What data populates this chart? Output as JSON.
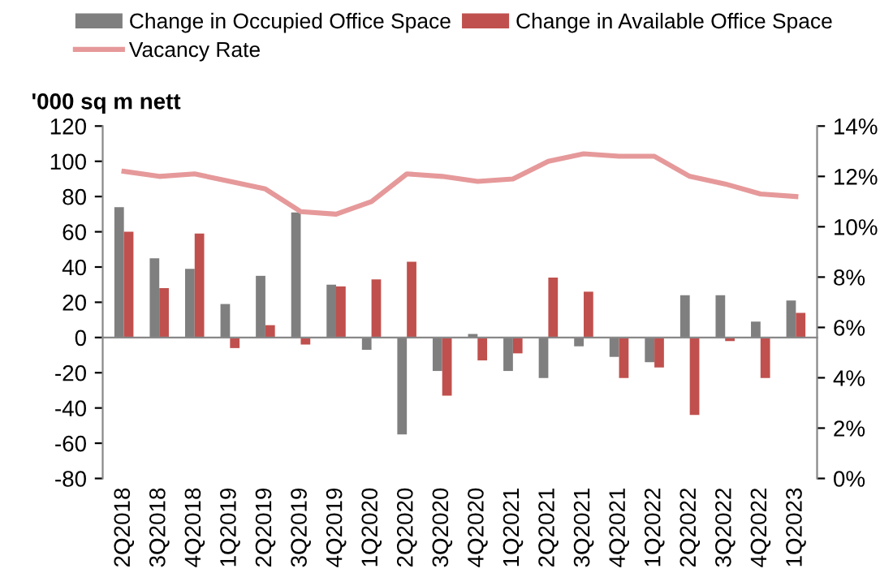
{
  "chart_data": {
    "type": "bar",
    "ylabel": "'000 sq m nett",
    "categories": [
      "2Q2018",
      "3Q2018",
      "4Q2018",
      "1Q2019",
      "2Q2019",
      "3Q2019",
      "4Q2019",
      "1Q2020",
      "2Q2020",
      "3Q2020",
      "4Q2020",
      "1Q2021",
      "2Q2021",
      "3Q2021",
      "4Q2021",
      "1Q2022",
      "2Q2022",
      "3Q2022",
      "4Q2022",
      "1Q2023"
    ],
    "series": [
      {
        "name": "Change in Occupied Office Space",
        "color": "#7f7f7f",
        "values": [
          74,
          45,
          39,
          19,
          35,
          71,
          30,
          -7,
          -55,
          -19,
          2,
          -19,
          -23,
          -5,
          -11,
          -14,
          24,
          24,
          9,
          21
        ]
      },
      {
        "name": "Change in Available Office Space",
        "color": "#c0504d",
        "values": [
          60,
          28,
          59,
          -6,
          7,
          -4,
          29,
          33,
          43,
          -33,
          -13,
          -9,
          34,
          26,
          -23,
          -17,
          -44,
          -2,
          -23,
          14
        ]
      },
      {
        "name": "Vacancy Rate",
        "type": "line",
        "axis": "y2",
        "color": "#e6999a",
        "values": [
          12.2,
          12.0,
          12.1,
          11.8,
          11.5,
          10.6,
          10.5,
          11.0,
          12.1,
          12.0,
          11.8,
          11.9,
          12.6,
          12.9,
          12.8,
          12.8,
          12.0,
          11.7,
          11.3,
          11.2
        ]
      }
    ],
    "ylim": [
      -80,
      120
    ],
    "yticks": [
      -80,
      -60,
      -40,
      -20,
      0,
      20,
      40,
      60,
      80,
      100,
      120
    ],
    "y2lim": [
      0,
      14
    ],
    "y2ticks": [
      {
        "value": 0,
        "label": "0%"
      },
      {
        "value": 2,
        "label": "2%"
      },
      {
        "value": 4,
        "label": "4%"
      },
      {
        "value": 6,
        "label": "6%"
      },
      {
        "value": 8,
        "label": "8%"
      },
      {
        "value": 10,
        "label": "10%"
      },
      {
        "value": 12,
        "label": "12%"
      },
      {
        "value": 14,
        "label": "14%"
      }
    ],
    "legend": "top"
  }
}
